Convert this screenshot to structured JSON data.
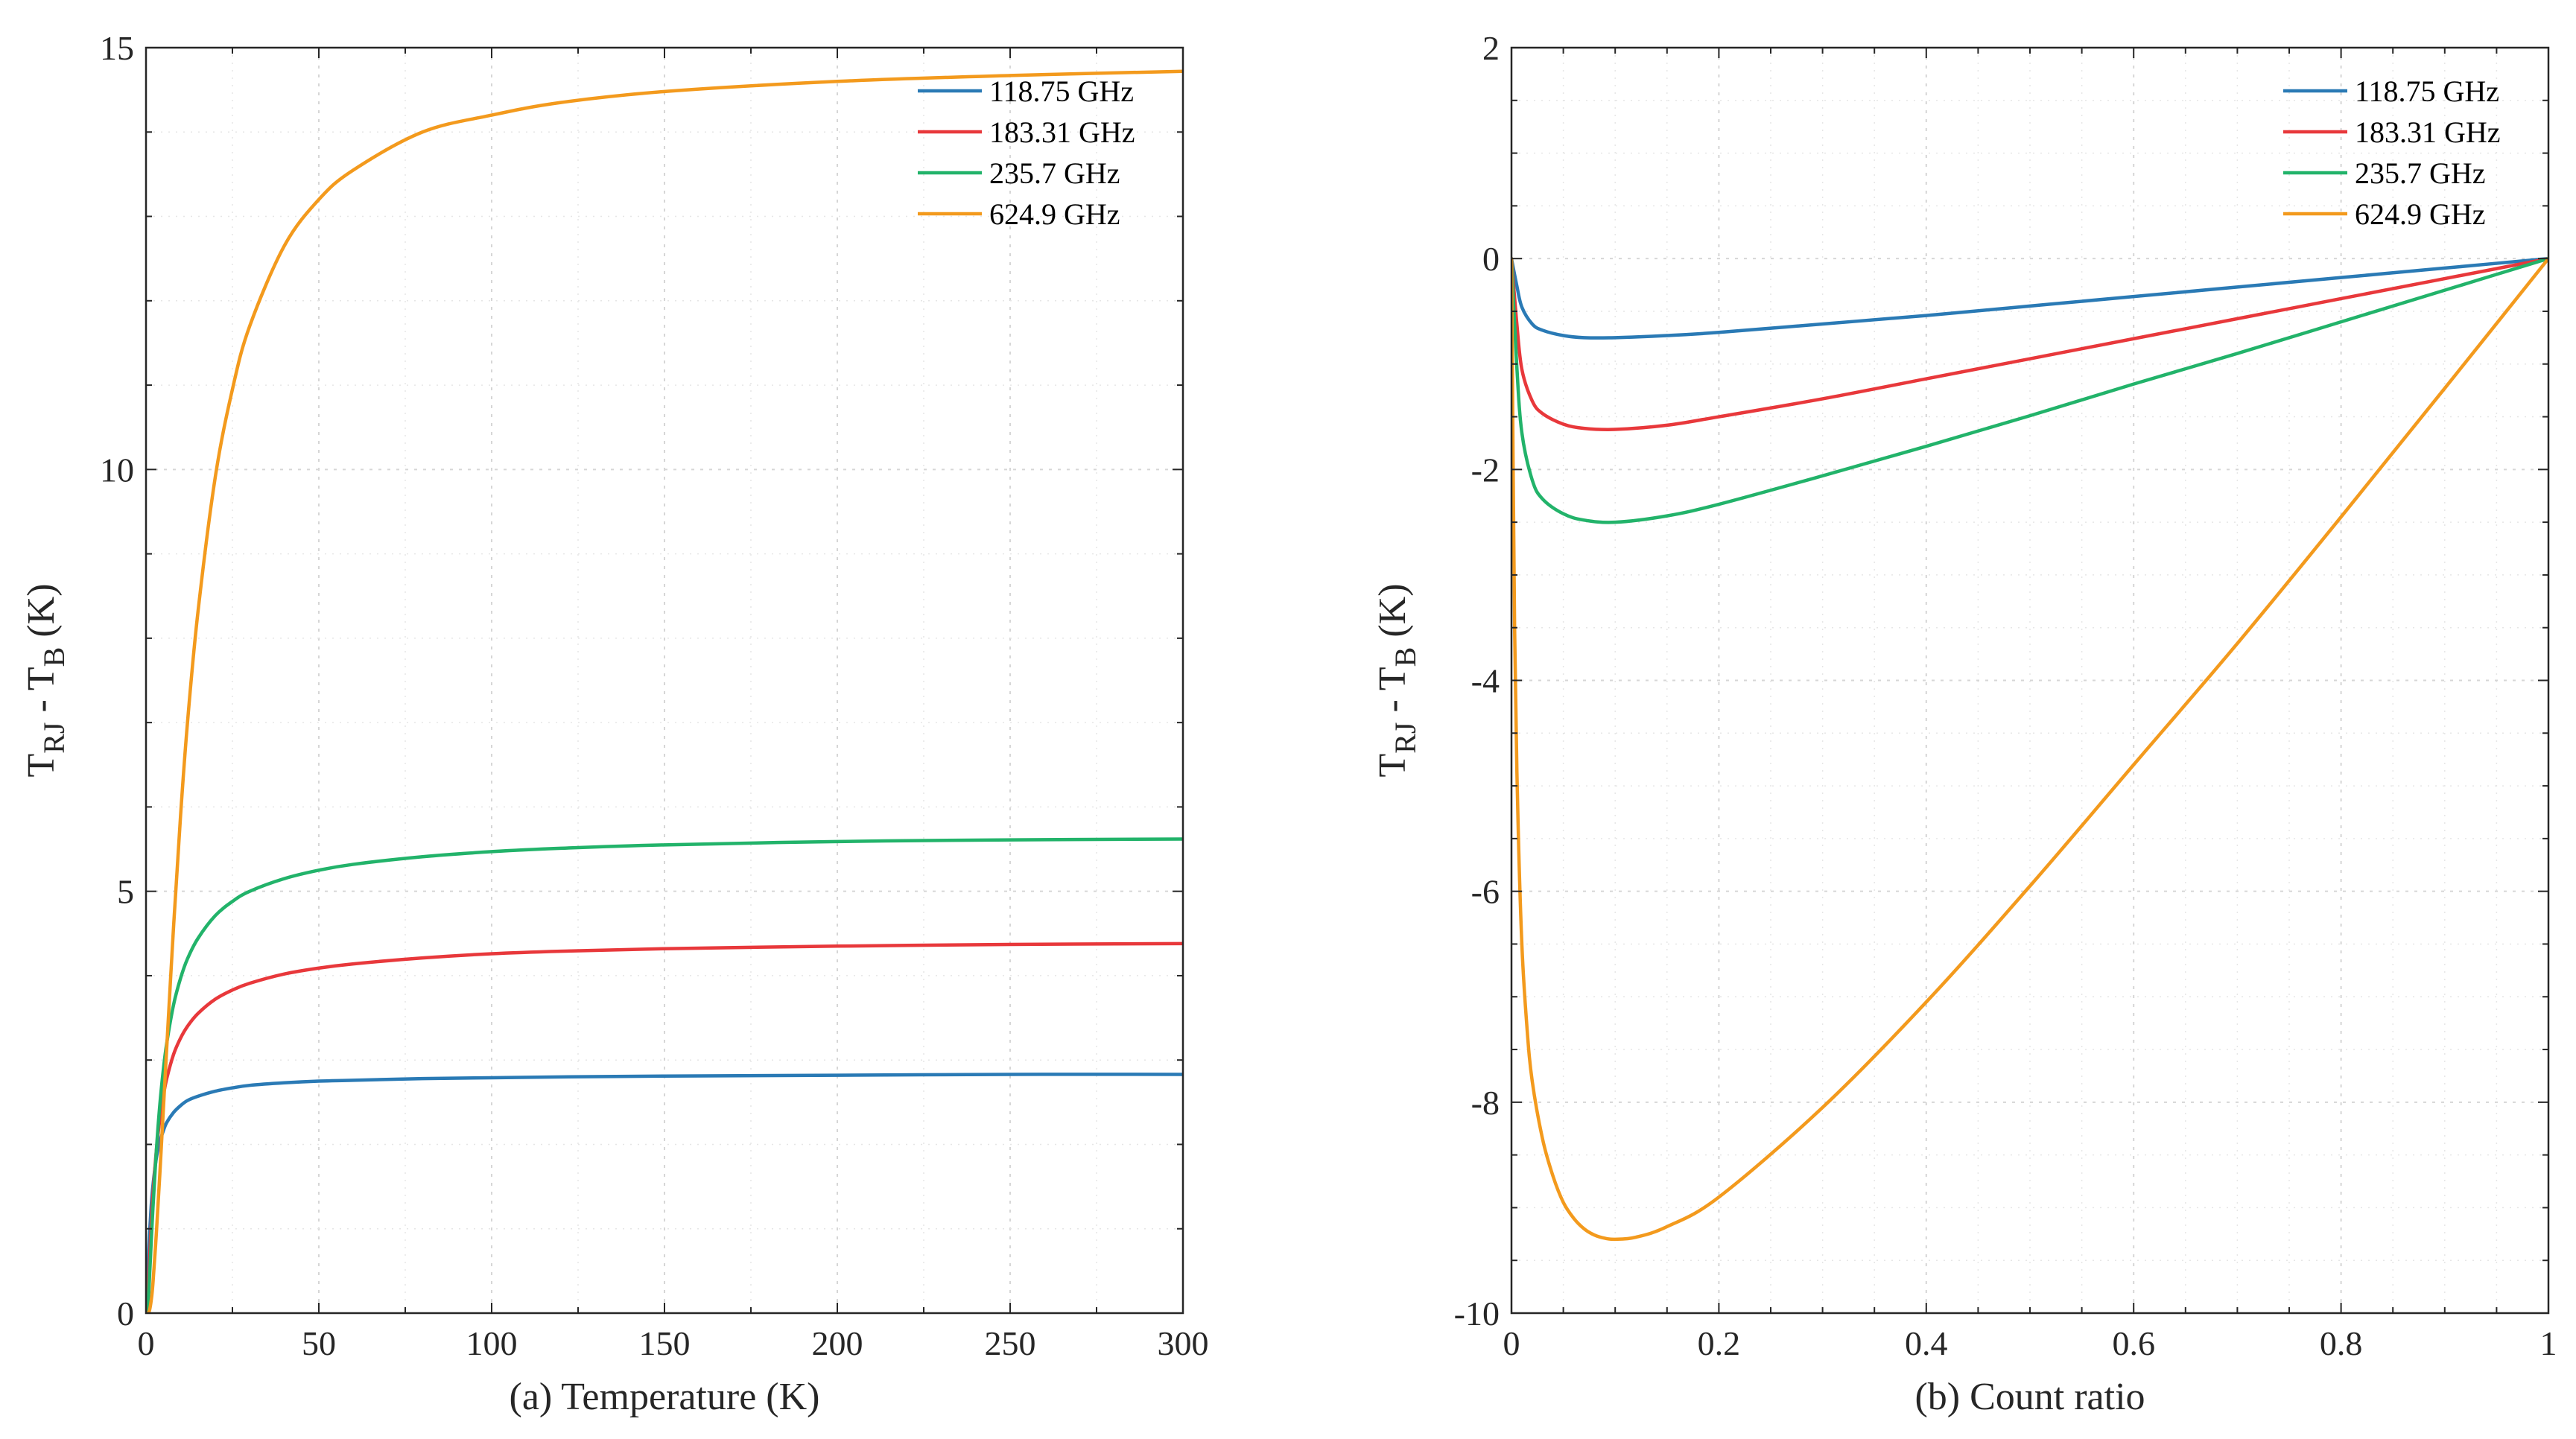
{
  "chart_data": [
    {
      "type": "line",
      "xlabel": "(a) Temperature (K)",
      "ylabel": {
        "main": "T",
        "sub1": "RJ",
        "mid": " - T",
        "sub2": "B",
        "tail": " (K)"
      },
      "xlim": [
        0,
        300
      ],
      "ylim": [
        0,
        15
      ],
      "xticks": [
        0,
        50,
        100,
        150,
        200,
        250,
        300
      ],
      "yticks": [
        0,
        5,
        10,
        15
      ],
      "grid": true,
      "legend_position": "top-right",
      "series": [
        {
          "name": "118.75 GHz",
          "color": "#2a7ab5",
          "x": [
            0.3,
            0.6,
            1,
            1.5,
            2,
            3,
            4,
            5,
            6,
            8,
            10,
            12,
            15,
            20,
            25,
            30,
            40,
            50,
            60,
            80,
            100,
            120,
            150,
            200,
            250,
            300
          ],
          "y": [
            0.02,
            0.53,
            0.92,
            1.27,
            1.51,
            1.84,
            2.03,
            2.16,
            2.26,
            2.38,
            2.46,
            2.52,
            2.57,
            2.63,
            2.67,
            2.7,
            2.73,
            2.75,
            2.76,
            2.78,
            2.79,
            2.8,
            2.81,
            2.82,
            2.83,
            2.83
          ]
        },
        {
          "name": "183.31 GHz",
          "color": "#e8383b",
          "x": [
            0.3,
            0.6,
            1,
            1.5,
            2,
            3,
            4,
            5,
            6,
            8,
            10,
            12,
            15,
            20,
            25,
            30,
            40,
            50,
            60,
            80,
            100,
            120,
            150,
            200,
            250,
            300
          ],
          "y": [
            0.0,
            0.22,
            0.61,
            1.03,
            1.39,
            1.93,
            2.3,
            2.57,
            2.78,
            3.07,
            3.26,
            3.4,
            3.55,
            3.72,
            3.83,
            3.91,
            4.02,
            4.09,
            4.14,
            4.21,
            4.26,
            4.29,
            4.32,
            4.35,
            4.37,
            4.38
          ]
        },
        {
          "name": "235.7 GHz",
          "color": "#22b36a",
          "x": [
            0.3,
            0.6,
            1,
            1.5,
            2,
            3,
            4,
            5,
            6,
            8,
            10,
            12,
            15,
            20,
            25,
            30,
            40,
            50,
            60,
            80,
            100,
            120,
            150,
            200,
            250,
            300
          ],
          "y": [
            0.0,
            0.11,
            0.41,
            0.84,
            1.24,
            1.93,
            2.47,
            2.88,
            3.2,
            3.66,
            3.97,
            4.2,
            4.44,
            4.71,
            4.88,
            5.0,
            5.15,
            5.25,
            5.32,
            5.41,
            5.47,
            5.51,
            5.55,
            5.59,
            5.61,
            5.62
          ]
        },
        {
          "name": "624.9 GHz",
          "color": "#f39a1d",
          "x": [
            0.3,
            0.6,
            1,
            1.5,
            2,
            3,
            4,
            5,
            6,
            8,
            10,
            12,
            15,
            20,
            25,
            30,
            40,
            50,
            60,
            80,
            100,
            120,
            150,
            200,
            250,
            300
          ],
          "y": [
            0.0,
            0.0,
            0.03,
            0.15,
            0.35,
            0.95,
            1.65,
            2.4,
            3.15,
            4.6,
            5.9,
            7.0,
            8.3,
            9.9,
            10.95,
            11.7,
            12.65,
            13.2,
            13.55,
            14.0,
            14.2,
            14.35,
            14.48,
            14.6,
            14.67,
            14.72
          ]
        }
      ]
    },
    {
      "type": "line",
      "xlabel": "(b) Count ratio",
      "ylabel": {
        "main": "T",
        "sub1": "RJ",
        "mid": " - T",
        "sub2": "B",
        "tail": " (K)"
      },
      "xlim": [
        0,
        1
      ],
      "ylim": [
        -10,
        2
      ],
      "xticks": [
        0,
        0.2,
        0.4,
        0.6,
        0.8,
        1
      ],
      "yticks": [
        -10,
        -8,
        -6,
        -4,
        -2,
        0,
        2
      ],
      "grid": true,
      "legend_position": "top-right",
      "series": [
        {
          "name": "118.75 GHz",
          "color": "#2a7ab5",
          "x": [
            0,
            0.005,
            0.01,
            0.02,
            0.03,
            0.05,
            0.07,
            0.1,
            0.15,
            0.2,
            0.3,
            0.4,
            0.5,
            0.6,
            0.7,
            0.8,
            0.9,
            1
          ],
          "y": [
            0,
            -0.25,
            -0.46,
            -0.62,
            -0.68,
            -0.73,
            -0.75,
            -0.75,
            -0.73,
            -0.7,
            -0.62,
            -0.54,
            -0.45,
            -0.36,
            -0.27,
            -0.18,
            -0.09,
            0
          ]
        },
        {
          "name": "183.31 GHz",
          "color": "#e8383b",
          "x": [
            0,
            0.005,
            0.01,
            0.02,
            0.03,
            0.05,
            0.07,
            0.1,
            0.15,
            0.2,
            0.3,
            0.4,
            0.5,
            0.6,
            0.7,
            0.8,
            0.9,
            1
          ],
          "y": [
            0,
            -0.6,
            -1.05,
            -1.35,
            -1.47,
            -1.57,
            -1.61,
            -1.62,
            -1.58,
            -1.5,
            -1.33,
            -1.14,
            -0.95,
            -0.76,
            -0.57,
            -0.38,
            -0.19,
            0
          ]
        },
        {
          "name": "235.7 GHz",
          "color": "#22b36a",
          "x": [
            0,
            0.005,
            0.01,
            0.02,
            0.03,
            0.05,
            0.07,
            0.1,
            0.15,
            0.2,
            0.3,
            0.4,
            0.5,
            0.6,
            0.7,
            0.8,
            0.9,
            1
          ],
          "y": [
            0,
            -1.0,
            -1.65,
            -2.1,
            -2.28,
            -2.42,
            -2.48,
            -2.5,
            -2.44,
            -2.33,
            -2.06,
            -1.78,
            -1.49,
            -1.19,
            -0.9,
            -0.6,
            -0.3,
            0
          ]
        },
        {
          "name": "624.9 GHz",
          "color": "#f39a1d",
          "x": [
            0,
            0.003,
            0.006,
            0.01,
            0.015,
            0.02,
            0.03,
            0.04,
            0.05,
            0.06,
            0.07,
            0.08,
            0.09,
            0.1,
            0.12,
            0.15,
            0.2,
            0.3,
            0.4,
            0.5,
            0.6,
            0.7,
            0.8,
            0.9,
            1
          ],
          "y": [
            0,
            -3.5,
            -5.2,
            -6.5,
            -7.3,
            -7.8,
            -8.35,
            -8.7,
            -8.95,
            -9.1,
            -9.2,
            -9.26,
            -9.29,
            -9.3,
            -9.28,
            -9.18,
            -8.9,
            -8.05,
            -7.05,
            -5.95,
            -4.8,
            -3.65,
            -2.45,
            -1.23,
            0
          ]
        }
      ]
    }
  ]
}
